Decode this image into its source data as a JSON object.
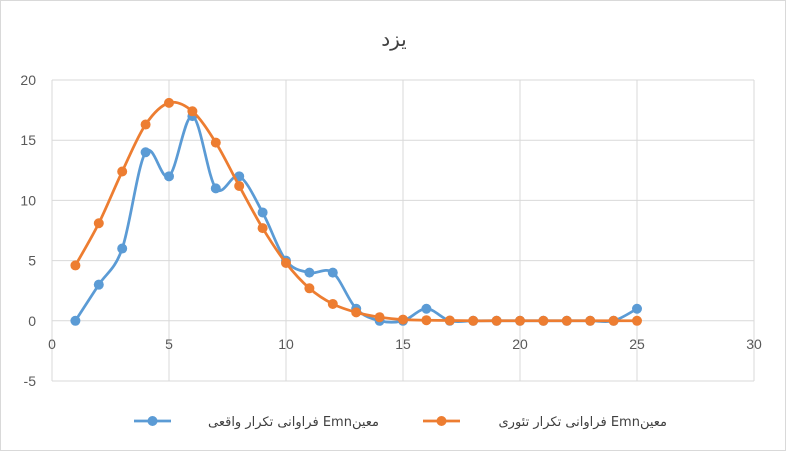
{
  "chart_data": {
    "type": "scatter",
    "title": "یزد",
    "xlabel": "",
    "ylabel": "",
    "xlim": [
      0,
      30
    ],
    "ylim": [
      -5,
      20
    ],
    "x_ticks": [
      0,
      5,
      10,
      15,
      20,
      25,
      30
    ],
    "y_ticks": [
      -5,
      0,
      5,
      10,
      15,
      20
    ],
    "grid": true,
    "legend_position": "bottom",
    "smooth_lines": true,
    "series": [
      {
        "name": "فراوانی تکرار واقعی Emnمعین",
        "color": "#5b9bd5",
        "x": [
          1,
          2,
          3,
          4,
          5,
          6,
          7,
          8,
          9,
          10,
          11,
          12,
          13,
          14,
          15,
          16,
          17,
          18,
          19,
          20,
          21,
          22,
          23,
          24,
          25
        ],
        "y": [
          0,
          3,
          6,
          14,
          12,
          17,
          11,
          12,
          9,
          5,
          4,
          4,
          1,
          0,
          0,
          1,
          0,
          0,
          0,
          0,
          0,
          0,
          0,
          0,
          1
        ]
      },
      {
        "name": "فراوانی تکرار تئوری Emnمعین",
        "color": "#ed7d31",
        "x": [
          1,
          2,
          3,
          4,
          5,
          6,
          7,
          8,
          9,
          10,
          11,
          12,
          13,
          14,
          15,
          16,
          17,
          18,
          19,
          20,
          21,
          22,
          23,
          24,
          25
        ],
        "y": [
          4.6,
          8.1,
          12.4,
          16.3,
          18.1,
          17.4,
          14.8,
          11.2,
          7.7,
          4.8,
          2.7,
          1.4,
          0.7,
          0.3,
          0.1,
          0.05,
          0.02,
          0,
          0,
          0,
          0,
          0,
          0,
          0,
          0
        ]
      }
    ]
  }
}
